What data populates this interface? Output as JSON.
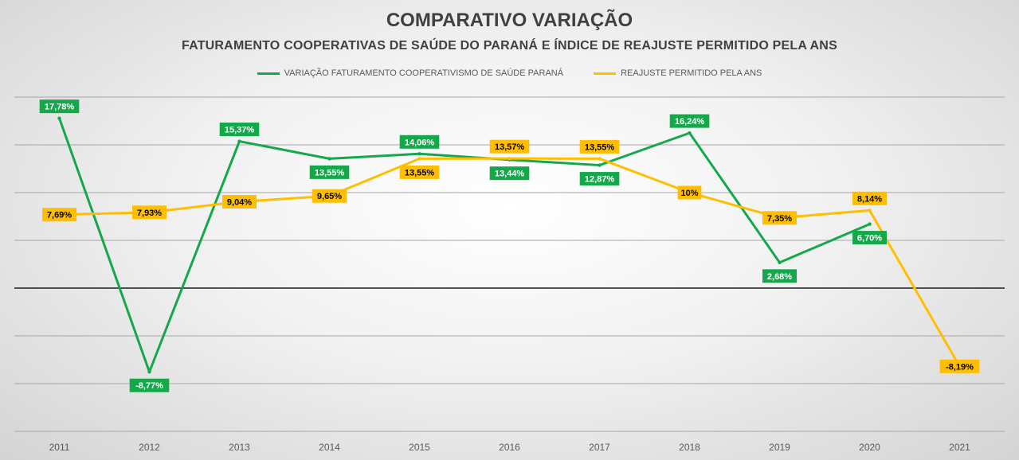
{
  "chart_data": {
    "type": "line",
    "title": "COMPARATIVO VARIAÇÃO",
    "subtitle": "FATURAMENTO COOPERATIVAS DE SAÚDE DO PARANÁ E ÍNDICE DE REAJUSTE PERMITIDO PELA ANS",
    "xlabel": "",
    "ylabel": "",
    "x": [
      "2011",
      "2012",
      "2013",
      "2014",
      "2015",
      "2016",
      "2017",
      "2018",
      "2019",
      "2020",
      "2021"
    ],
    "ylim": [
      -15,
      20
    ],
    "grid": true,
    "legend_position": "top",
    "series": [
      {
        "name": "VARIAÇÃO FATURAMENTO COOPERATIVISMO DE SAÚDE PARANÁ",
        "color": "#14a84b",
        "label_text_color": "#ffffff",
        "values": [
          17.78,
          -8.77,
          15.37,
          13.55,
          14.06,
          13.44,
          12.87,
          16.24,
          2.68,
          6.7,
          null
        ],
        "labels": [
          "17,78%",
          "-8,77%",
          "15,37%",
          "13,55%",
          "14,06%",
          "13,44%",
          "12,87%",
          "16,24%",
          "2,68%",
          "6,70%",
          null
        ],
        "label_pos": [
          "above",
          "below",
          "above",
          "below",
          "above",
          "below",
          "below",
          "above",
          "below",
          "below",
          null
        ]
      },
      {
        "name": "REAJUSTE PERMITIDO PELA ANS",
        "color": "#ffbf00",
        "label_text_color": "#000000",
        "values": [
          7.69,
          7.93,
          9.04,
          9.65,
          13.55,
          13.57,
          13.55,
          10.0,
          7.35,
          8.14,
          -8.19
        ],
        "labels": [
          "7,69%",
          "7,93%",
          "9,04%",
          "9,65%",
          "13,55%",
          "13,57%",
          "13,55%",
          "10%",
          "7,35%",
          "8,14%",
          "-8,19%"
        ],
        "label_pos": [
          "on",
          "on",
          "on",
          "on",
          "below",
          "above",
          "above",
          "on",
          "on",
          "above",
          "on"
        ]
      }
    ]
  }
}
